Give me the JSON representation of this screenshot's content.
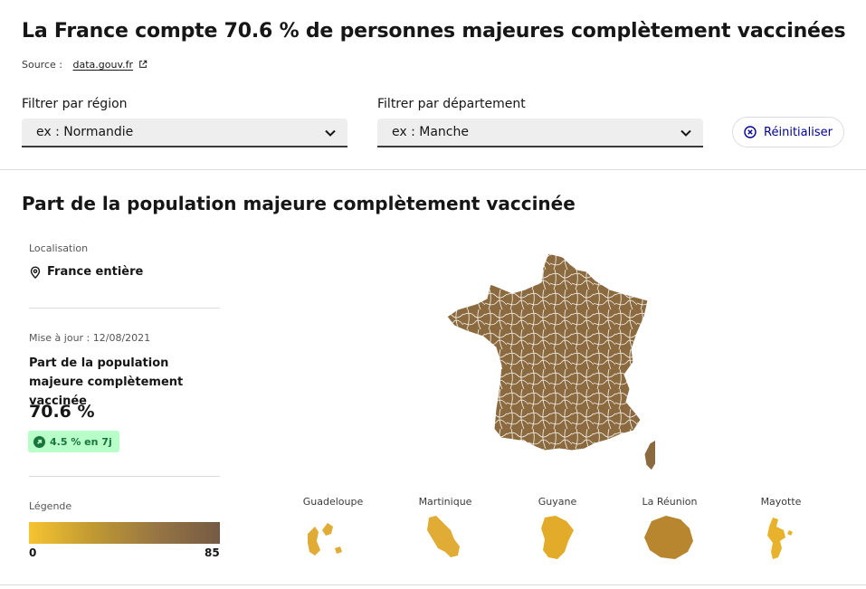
{
  "header": {
    "title": "La France compte 70.6 % de personnes majeures complètement vaccinées",
    "source_label": "Source :",
    "source_link": "data.gouv.fr"
  },
  "filters": {
    "region_label": "Filtrer par région",
    "region_placeholder": "ex : Normandie",
    "department_label": "Filtrer par département",
    "department_placeholder": "ex : Manche",
    "reset_label": "Réinitialiser"
  },
  "section": {
    "title": "Part de la population majeure complètement vaccinée"
  },
  "sidebar": {
    "location_label": "Localisation",
    "location_value": "France entière",
    "update_label": "Mise à jour : 12/08/2021",
    "kpi_label": "Part de la population majeure complètement vaccinée",
    "kpi_value": "70.6 %",
    "trend": "4.5 % en 7j",
    "legend_label": "Légende",
    "legend_min": "0",
    "legend_max": "85"
  },
  "colors": {
    "legend_low": "#f6c431",
    "legend_high": "#755a45",
    "accent": "#000091",
    "trend_bg": "#b8fec9",
    "trend_fg": "#18753c"
  },
  "territories": [
    {
      "name": "Guadeloupe",
      "color": "#e0ac35"
    },
    {
      "name": "Martinique",
      "color": "#e0ac35"
    },
    {
      "name": "Guyane",
      "color": "#e2ab2a"
    },
    {
      "name": "La Réunion",
      "color": "#b8862f"
    },
    {
      "name": "Mayotte",
      "color": "#e8b22c"
    }
  ]
}
